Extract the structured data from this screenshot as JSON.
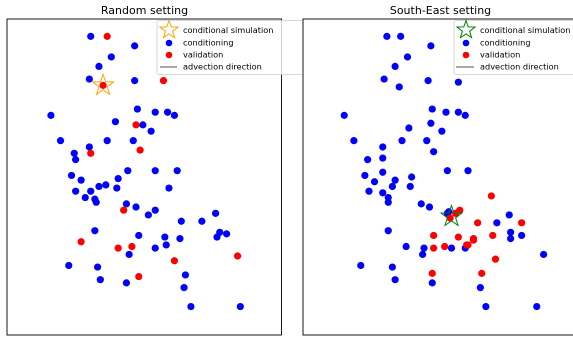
{
  "figure": {
    "colors": {
      "conditioning": "#0000ff",
      "validation": "#ff0000",
      "arrow": "#555555",
      "frame": "#000000"
    }
  },
  "chart_data": [
    {
      "type": "scatter",
      "title": "Random setting",
      "xlim": [
        0,
        100
      ],
      "ylim": [
        0,
        100
      ],
      "axes_visible": false,
      "grid": false,
      "legend_position": "top-right",
      "legend": [
        {
          "label": "conditional simulation",
          "marker": "star",
          "color": "#ffa500"
        },
        {
          "label": "conditioning",
          "marker": "circle",
          "color": "#0000ff"
        },
        {
          "label": "validation",
          "marker": "circle",
          "color": "#ff0000"
        },
        {
          "label": "advection direction",
          "marker": "line",
          "color": "#555555"
        }
      ],
      "star": {
        "x": 35,
        "y": 79
      },
      "series": [
        {
          "name": "conditioning",
          "color": "#0000ff",
          "points": [
            {
              "x": 30.5,
              "y": 94.5
            },
            {
              "x": 46.5,
              "y": 91.5
            },
            {
              "x": 38,
              "y": 88
            },
            {
              "x": 33.5,
              "y": 85
            },
            {
              "x": 30,
              "y": 81
            },
            {
              "x": 46.5,
              "y": 80.5
            },
            {
              "x": 47.5,
              "y": 71.5
            },
            {
              "x": 54,
              "y": 70.5
            },
            {
              "x": 58.5,
              "y": 70.5
            },
            {
              "x": 61,
              "y": 69.5
            },
            {
              "x": 16,
              "y": 69.5
            },
            {
              "x": 49.5,
              "y": 66.5
            },
            {
              "x": 39.5,
              "y": 67.5
            },
            {
              "x": 52.5,
              "y": 64.5
            },
            {
              "x": 19.5,
              "y": 61.5
            },
            {
              "x": 46,
              "y": 61.5
            },
            {
              "x": 36.5,
              "y": 61.5
            },
            {
              "x": 30,
              "y": 59.5
            },
            {
              "x": 25,
              "y": 55.5
            },
            {
              "x": 23.5,
              "y": 50.5
            },
            {
              "x": 24.5,
              "y": 57.5
            },
            {
              "x": 44,
              "y": 52
            },
            {
              "x": 54,
              "y": 52
            },
            {
              "x": 62,
              "y": 52
            },
            {
              "x": 40.5,
              "y": 49.5
            },
            {
              "x": 36,
              "y": 47.5
            },
            {
              "x": 27,
              "y": 49
            },
            {
              "x": 33.5,
              "y": 47
            },
            {
              "x": 25,
              "y": 45.5
            },
            {
              "x": 30.5,
              "y": 45.5
            },
            {
              "x": 40,
              "y": 46.5
            },
            {
              "x": 59,
              "y": 46.5
            },
            {
              "x": 28.5,
              "y": 43.5
            },
            {
              "x": 32,
              "y": 43
            },
            {
              "x": 32.5,
              "y": 42
            },
            {
              "x": 43.5,
              "y": 41.5
            },
            {
              "x": 47,
              "y": 40.5
            },
            {
              "x": 54,
              "y": 39.5
            },
            {
              "x": 51.5,
              "y": 38
            },
            {
              "x": 76,
              "y": 38.5
            },
            {
              "x": 63.5,
              "y": 36
            },
            {
              "x": 71,
              "y": 36
            },
            {
              "x": 32,
              "y": 33
            },
            {
              "x": 77.5,
              "y": 32.5
            },
            {
              "x": 80,
              "y": 32
            },
            {
              "x": 76.5,
              "y": 31
            },
            {
              "x": 48,
              "y": 31.5
            },
            {
              "x": 57.5,
              "y": 31
            },
            {
              "x": 63,
              "y": 30.5
            },
            {
              "x": 58,
              "y": 28.5
            },
            {
              "x": 54,
              "y": 27.5
            },
            {
              "x": 44.5,
              "y": 25.5
            },
            {
              "x": 22.5,
              "y": 22
            },
            {
              "x": 33,
              "y": 21.5
            },
            {
              "x": 65,
              "y": 19
            },
            {
              "x": 34,
              "y": 17.5
            },
            {
              "x": 43.5,
              "y": 16.5
            },
            {
              "x": 64.5,
              "y": 15
            },
            {
              "x": 67,
              "y": 9
            },
            {
              "x": 85,
              "y": 9
            }
          ]
        },
        {
          "name": "validation",
          "color": "#ff0000",
          "points": [
            {
              "x": 36.5,
              "y": 94.5
            },
            {
              "x": 57,
              "y": 80.5
            },
            {
              "x": 47,
              "y": 66.5
            },
            {
              "x": 48.5,
              "y": 58.5
            },
            {
              "x": 30.5,
              "y": 57.5
            },
            {
              "x": 42.5,
              "y": 39.5
            },
            {
              "x": 27,
              "y": 29.5
            },
            {
              "x": 40.5,
              "y": 27.5
            },
            {
              "x": 45.5,
              "y": 28
            },
            {
              "x": 61,
              "y": 23.5
            },
            {
              "x": 84,
              "y": 25
            },
            {
              "x": 48,
              "y": 18.5
            },
            {
              "x": 35,
              "y": 79
            }
          ]
        }
      ]
    },
    {
      "type": "scatter",
      "title": "South-East setting",
      "xlim": [
        0,
        100
      ],
      "ylim": [
        0,
        100
      ],
      "axes_visible": false,
      "grid": false,
      "legend_position": "top-right",
      "legend": [
        {
          "label": "conditional simulation",
          "marker": "star",
          "color": "#008000"
        },
        {
          "label": "conditioning",
          "marker": "circle",
          "color": "#0000ff"
        },
        {
          "label": "validation",
          "marker": "circle",
          "color": "#ff0000"
        },
        {
          "label": "advection direction",
          "marker": "line",
          "color": "#555555"
        }
      ],
      "star": {
        "x": 54,
        "y": 37.5
      },
      "series": [
        {
          "name": "conditioning",
          "color": "#0000ff",
          "points": [
            {
              "x": 30.5,
              "y": 94.5
            },
            {
              "x": 35.5,
              "y": 94.5
            },
            {
              "x": 46.5,
              "y": 91.5
            },
            {
              "x": 38,
              "y": 88
            },
            {
              "x": 33.5,
              "y": 85
            },
            {
              "x": 29.5,
              "y": 81
            },
            {
              "x": 35,
              "y": 78.5
            },
            {
              "x": 45.5,
              "y": 80.5
            },
            {
              "x": 56.5,
              "y": 80
            },
            {
              "x": 47,
              "y": 71.5
            },
            {
              "x": 52,
              "y": 70.5
            },
            {
              "x": 56.5,
              "y": 70.5
            },
            {
              "x": 59,
              "y": 69.5
            },
            {
              "x": 15,
              "y": 69.5
            },
            {
              "x": 46.5,
              "y": 67
            },
            {
              "x": 38.5,
              "y": 65.5
            },
            {
              "x": 50.5,
              "y": 64.5
            },
            {
              "x": 18.5,
              "y": 61.5
            },
            {
              "x": 45,
              "y": 61.5
            },
            {
              "x": 36,
              "y": 61.5
            },
            {
              "x": 29,
              "y": 59.5
            },
            {
              "x": 47.5,
              "y": 58
            },
            {
              "x": 23.5,
              "y": 55.5
            },
            {
              "x": 29,
              "y": 56
            },
            {
              "x": 29,
              "y": 51.5
            },
            {
              "x": 22.5,
              "y": 50.5
            },
            {
              "x": 52.5,
              "y": 52
            },
            {
              "x": 60,
              "y": 52
            },
            {
              "x": 39.5,
              "y": 50
            },
            {
              "x": 33.5,
              "y": 49
            },
            {
              "x": 26,
              "y": 48.5
            },
            {
              "x": 32.5,
              "y": 47
            },
            {
              "x": 39,
              "y": 47
            },
            {
              "x": 24,
              "y": 45.5
            },
            {
              "x": 29,
              "y": 45
            },
            {
              "x": 31,
              "y": 43.5
            },
            {
              "x": 31,
              "y": 42
            },
            {
              "x": 43,
              "y": 41.5
            },
            {
              "x": 46,
              "y": 40.5
            },
            {
              "x": 53,
              "y": 39
            },
            {
              "x": 52.5,
              "y": 38.5
            },
            {
              "x": 75,
              "y": 38
            },
            {
              "x": 70.5,
              "y": 35.5
            },
            {
              "x": 31,
              "y": 33
            },
            {
              "x": 75.5,
              "y": 32.5
            },
            {
              "x": 79.5,
              "y": 31.5
            },
            {
              "x": 75.5,
              "y": 30.5
            },
            {
              "x": 37.5,
              "y": 28
            },
            {
              "x": 44,
              "y": 27.5
            },
            {
              "x": 54,
              "y": 27.5
            },
            {
              "x": 59,
              "y": 27.5
            },
            {
              "x": 43.5,
              "y": 25.5
            },
            {
              "x": 87.5,
              "y": 25.5
            },
            {
              "x": 21,
              "y": 22
            },
            {
              "x": 32.5,
              "y": 21.5
            },
            {
              "x": 33.5,
              "y": 17.5
            },
            {
              "x": 47,
              "y": 16.5
            },
            {
              "x": 64.5,
              "y": 15
            },
            {
              "x": 66.5,
              "y": 9
            },
            {
              "x": 85,
              "y": 9
            }
          ]
        },
        {
          "name": "validation",
          "color": "#ff0000",
          "points": [
            {
              "x": 68.5,
              "y": 44
            },
            {
              "x": 57,
              "y": 39.5
            },
            {
              "x": 53.5,
              "y": 37
            },
            {
              "x": 55.5,
              "y": 38.5
            },
            {
              "x": 63.5,
              "y": 35.5
            },
            {
              "x": 79.5,
              "y": 35.5
            },
            {
              "x": 47.5,
              "y": 31.5
            },
            {
              "x": 56.5,
              "y": 31
            },
            {
              "x": 62,
              "y": 30
            },
            {
              "x": 62,
              "y": 30.5
            },
            {
              "x": 69,
              "y": 31.5
            },
            {
              "x": 51.5,
              "y": 28
            },
            {
              "x": 59.5,
              "y": 28.5
            },
            {
              "x": 47.5,
              "y": 27.5
            },
            {
              "x": 60,
              "y": 28.5
            },
            {
              "x": 70,
              "y": 24
            },
            {
              "x": 65,
              "y": 19.5
            },
            {
              "x": 47,
              "y": 19.5
            }
          ]
        }
      ]
    }
  ]
}
